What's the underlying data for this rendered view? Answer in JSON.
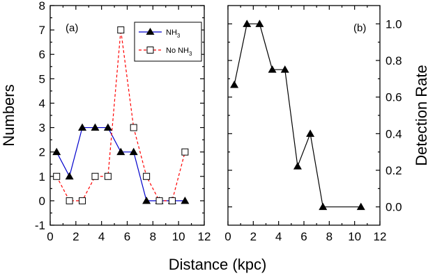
{
  "chart_data": [
    {
      "type": "line",
      "panel_label": "(a)",
      "xlabel": "Distance (kpc)",
      "ylabel": "Numbers",
      "xlim": [
        0,
        12
      ],
      "ylim": [
        -1,
        8
      ],
      "xticks": [
        "0",
        "2",
        "4",
        "6",
        "8",
        "10",
        "12"
      ],
      "yticks": [
        "-1",
        "0",
        "1",
        "2",
        "3",
        "4",
        "5",
        "6",
        "7",
        "8"
      ],
      "legend_position": "top-right",
      "series": [
        {
          "name": "NH3",
          "name_main": "NH",
          "name_sub": "3",
          "color": "#0000cc",
          "line_style": "solid",
          "marker": "filled-triangle",
          "x": [
            0.5,
            1.5,
            2.5,
            3.5,
            4.5,
            5.5,
            6.5,
            7.5,
            8.5,
            9.5,
            10.5
          ],
          "y": [
            2,
            1,
            3,
            3,
            3,
            2,
            2,
            0,
            0,
            0,
            0
          ]
        },
        {
          "name": "No NH3",
          "name_main": "No NH",
          "name_sub": "3",
          "color": "#ff0000",
          "line_style": "dashed",
          "marker": "open-square",
          "x": [
            0.5,
            1.5,
            2.5,
            3.5,
            4.5,
            5.5,
            6.5,
            7.5,
            8.5,
            9.5,
            10.5
          ],
          "y": [
            1,
            0,
            0,
            1,
            1,
            7,
            3,
            1,
            0,
            0,
            2
          ]
        }
      ]
    },
    {
      "type": "line",
      "panel_label": "(b)",
      "xlabel": "Distance (kpc)",
      "ylabel": "Detection Rate",
      "xlim": [
        0,
        12
      ],
      "ylim": [
        -0.1,
        1.1
      ],
      "xticks": [
        "0",
        "2",
        "4",
        "6",
        "8",
        "10",
        "12"
      ],
      "yticks": [
        "0.0",
        "0.2",
        "0.4",
        "0.6",
        "0.8",
        "1.0"
      ],
      "y_axis_side": "right",
      "series": [
        {
          "color": "#000000",
          "line_style": "solid",
          "marker": "filled-triangle",
          "x": [
            0.5,
            1.5,
            2.5,
            3.5,
            4.5,
            5.5,
            6.5,
            7.5,
            10.5
          ],
          "y": [
            0.667,
            1.0,
            1.0,
            0.75,
            0.75,
            0.222,
            0.4,
            0.0,
            0.0
          ]
        }
      ]
    }
  ]
}
